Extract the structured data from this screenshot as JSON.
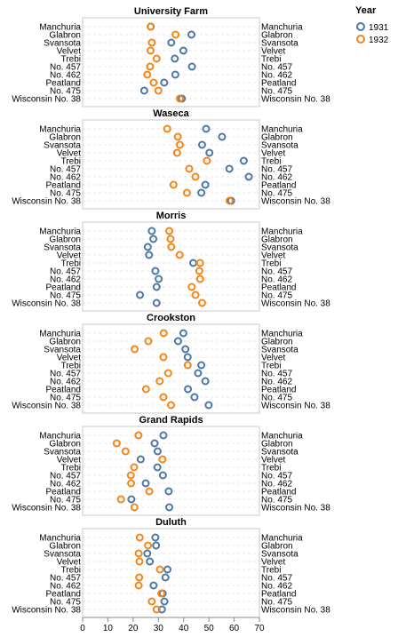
{
  "chart_data": {
    "type": "scatter",
    "x_ticks": [
      0,
      10,
      20,
      30,
      40,
      50,
      60,
      70
    ],
    "xlim": [
      0,
      70
    ],
    "grid": true,
    "legend_position": "top-right",
    "legend": {
      "title": "Year",
      "entries": [
        {
          "label": "1931",
          "color": "#4c78a8"
        },
        {
          "label": "1932",
          "color": "#f58518"
        }
      ]
    },
    "varieties": [
      "Manchuria",
      "Glabron",
      "Svansota",
      "Velvet",
      "Trebi",
      "No. 457",
      "No. 462",
      "Peatland",
      "No. 475",
      "Wisconsin No. 38"
    ],
    "panels": [
      {
        "site": "University Farm",
        "y1931": [
          27.0,
          43.1,
          35.1,
          39.9,
          36.5,
          43.3,
          36.7,
          32.3,
          24.4,
          39.3
        ],
        "y1932": [
          26.9,
          36.8,
          27.4,
          26.9,
          29.3,
          26.7,
          25.6,
          28.1,
          30.0,
          38.5
        ]
      },
      {
        "site": "Waseca",
        "y1931": [
          48.9,
          55.2,
          47.3,
          50.2,
          63.8,
          58.1,
          65.8,
          48.6,
          47.0,
          58.8
        ],
        "y1932": [
          33.5,
          37.7,
          38.5,
          37.4,
          49.2,
          42.2,
          44.7,
          36.0,
          41.3,
          58.2
        ]
      },
      {
        "site": "Morris",
        "y1931": [
          27.4,
          28.0,
          25.8,
          26.3,
          43.8,
          28.8,
          30.1,
          29.3,
          22.7,
          29.3
        ],
        "y1932": [
          34.3,
          34.8,
          35.1,
          38.4,
          46.5,
          46.2,
          46.5,
          43.2,
          44.7,
          47.3
        ]
      },
      {
        "site": "Crookston",
        "y1931": [
          39.9,
          37.8,
          40.7,
          41.6,
          47.0,
          45.7,
          48.6,
          41.7,
          44.3,
          49.9
        ],
        "y1932": [
          32.1,
          26.0,
          20.6,
          32.0,
          41.6,
          33.9,
          30.5,
          25.1,
          32.0,
          35.0
        ]
      },
      {
        "site": "Grand Rapids",
        "y1931": [
          32.0,
          28.5,
          29.7,
          23.0,
          29.6,
          31.8,
          25.0,
          34.1,
          19.3,
          34.3
        ],
        "y1932": [
          22.1,
          13.5,
          17.0,
          31.6,
          20.4,
          19.1,
          19.2,
          26.4,
          15.2,
          20.5
        ]
      },
      {
        "site": "Duluth",
        "y1931": [
          28.8,
          29.1,
          25.6,
          26.6,
          33.6,
          32.8,
          28.1,
          31.7,
          32.4,
          31.4
        ],
        "y1932": [
          22.6,
          25.9,
          22.2,
          22.5,
          30.6,
          22.4,
          22.2,
          31.2,
          27.4,
          29.3
        ]
      }
    ]
  }
}
